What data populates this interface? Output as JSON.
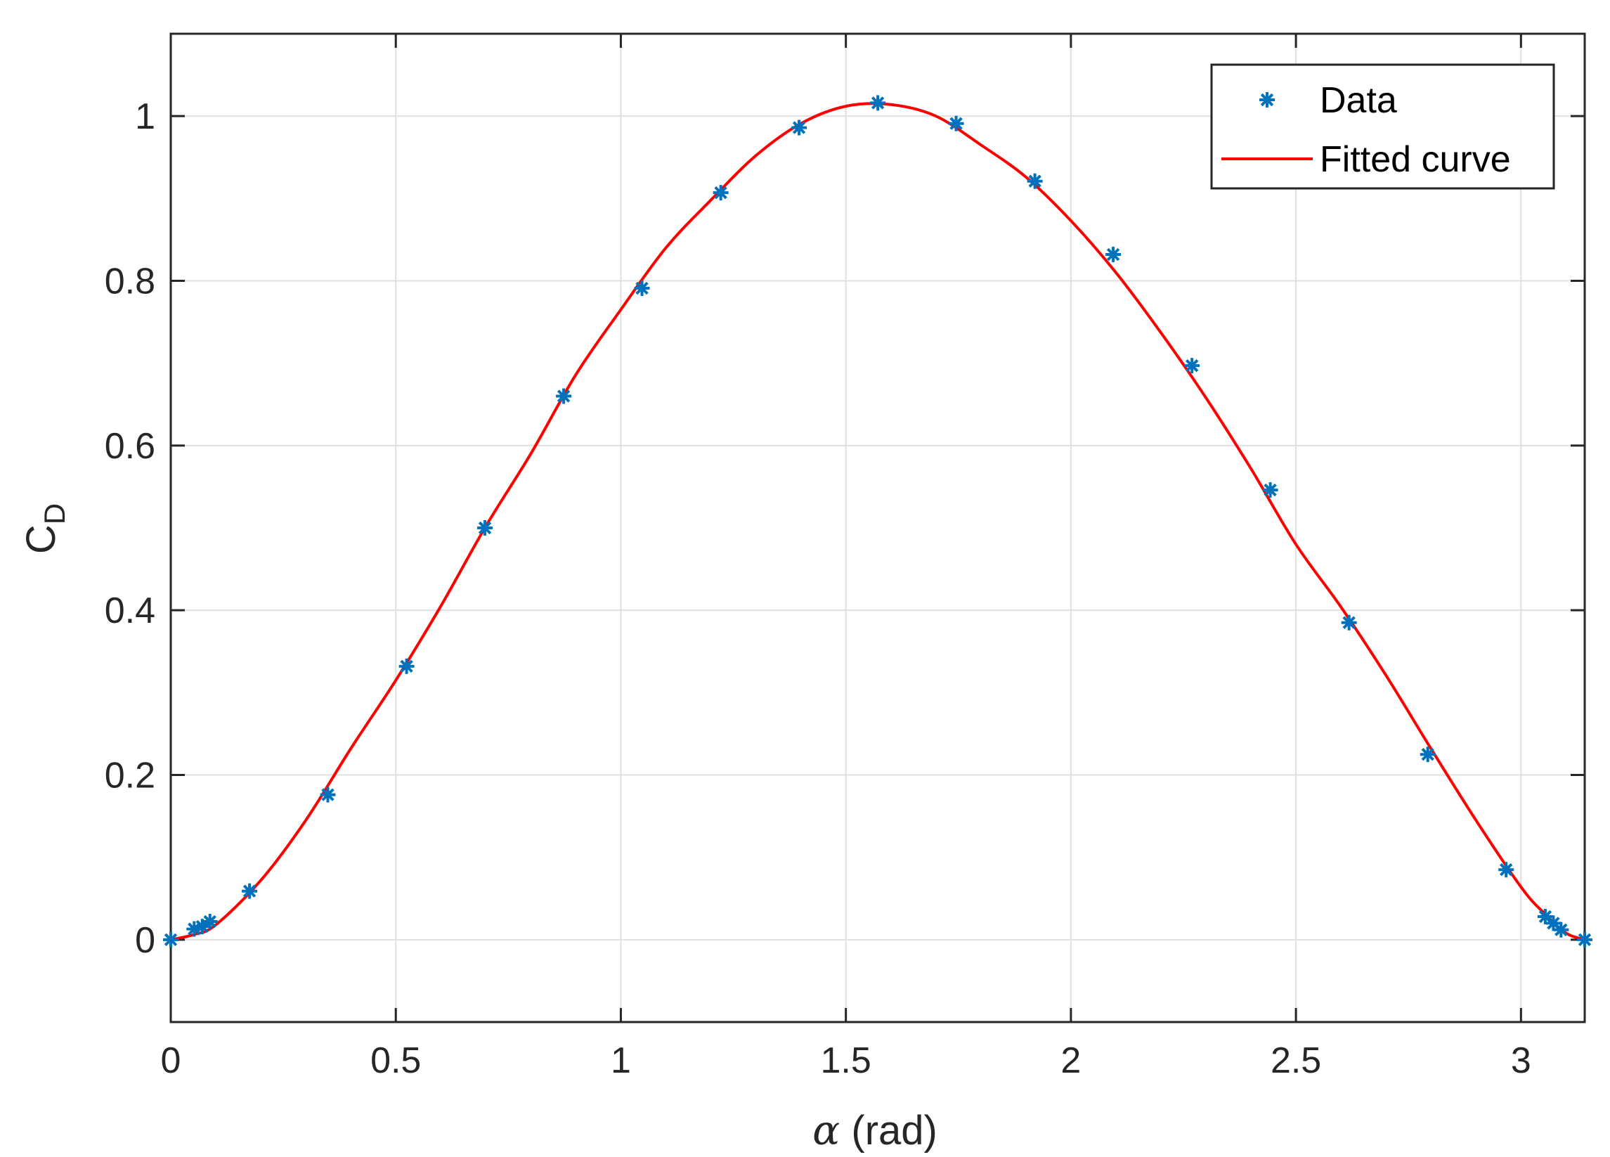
{
  "chart_data": {
    "type": "line",
    "xlabel": {
      "symbol": "α",
      "unit": " (rad)"
    },
    "ylabel": {
      "main": "C",
      "subscript": "D"
    },
    "xlim": [
      0,
      3.1416
    ],
    "ylim": [
      -0.1,
      1.1
    ],
    "xticks": [
      0,
      0.5,
      1,
      1.5,
      2,
      2.5,
      3
    ],
    "xtick_labels": [
      "0",
      "0.5",
      "1",
      "1.5",
      "2",
      "2.5",
      "3"
    ],
    "yticks": [
      0,
      0.2,
      0.4,
      0.6,
      0.8,
      1
    ],
    "ytick_labels": [
      "0",
      "0.2",
      "0.4",
      "0.6",
      "0.8",
      "1"
    ],
    "grid": true,
    "legend_position": "top-right",
    "series": [
      {
        "name": "Data",
        "kind": "scatter",
        "marker": "asterisk",
        "color": "#0072BD",
        "x": [
          0,
          0.052,
          0.07,
          0.087,
          0.175,
          0.349,
          0.524,
          0.698,
          0.873,
          1.047,
          1.222,
          1.396,
          1.571,
          1.745,
          1.92,
          2.094,
          2.269,
          2.443,
          2.618,
          2.793,
          2.967,
          3.054,
          3.072,
          3.089,
          3.1416
        ],
        "y": [
          0,
          0.013,
          0.016,
          0.022,
          0.059,
          0.176,
          0.332,
          0.5,
          0.66,
          0.791,
          0.907,
          0.986,
          1.016,
          0.991,
          0.921,
          0.832,
          0.697,
          0.546,
          0.385,
          0.225,
          0.085,
          0.028,
          0.02,
          0.012,
          0
        ]
      },
      {
        "name": "Fitted curve",
        "kind": "line",
        "color": "#FF0000",
        "x": [
          0,
          0.05,
          0.1,
          0.2,
          0.3,
          0.4,
          0.5,
          0.6,
          0.7,
          0.8,
          0.9,
          1.0,
          1.1,
          1.2,
          1.3,
          1.4,
          1.5,
          1.6,
          1.7,
          1.8,
          1.9,
          2.0,
          2.1,
          2.2,
          2.3,
          2.4,
          2.5,
          2.6,
          2.7,
          2.8,
          2.9,
          3.0,
          3.05,
          3.1,
          3.1416
        ],
        "y": [
          0,
          0.006,
          0.018,
          0.072,
          0.145,
          0.232,
          0.315,
          0.405,
          0.502,
          0.59,
          0.686,
          0.765,
          0.84,
          0.898,
          0.952,
          0.991,
          1.012,
          1.014,
          1.0,
          0.965,
          0.926,
          0.873,
          0.81,
          0.737,
          0.658,
          0.572,
          0.48,
          0.404,
          0.321,
          0.232,
          0.145,
          0.064,
          0.033,
          0.008,
          0
        ]
      }
    ]
  }
}
